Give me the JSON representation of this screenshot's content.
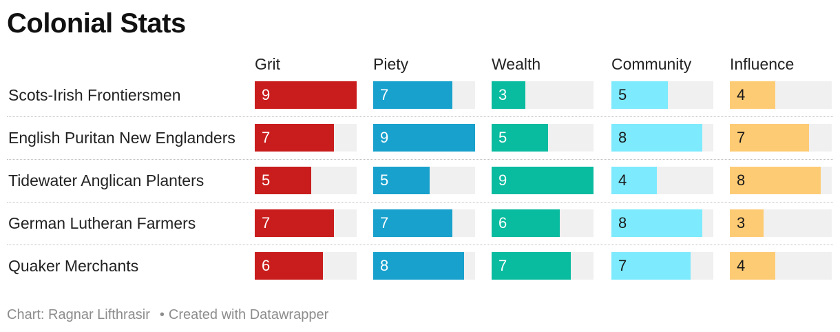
{
  "title": "Colonial Stats",
  "footer": {
    "source": "Chart: Ragnar Lifthrasir",
    "separator": "•",
    "credit": "Created with Datawrapper"
  },
  "colors": {
    "Grit": "#c91d1d",
    "Piety": "#18a1cd",
    "Wealth": "#09bb9f",
    "Community": "#7eeafd",
    "Influence": "#fecb75",
    "track": "#f0f0f0"
  },
  "chart_data": {
    "type": "table",
    "title": "Colonial Stats",
    "max": 9,
    "columns": [
      "Grit",
      "Piety",
      "Wealth",
      "Community",
      "Influence"
    ],
    "rows": [
      {
        "label": "Scots-Irish Frontiersmen",
        "values": [
          9,
          7,
          3,
          5,
          4
        ]
      },
      {
        "label": "English Puritan New Englanders",
        "values": [
          7,
          9,
          5,
          8,
          7
        ]
      },
      {
        "label": "Tidewater Anglican Planters",
        "values": [
          5,
          5,
          9,
          4,
          8
        ]
      },
      {
        "label": "German Lutheran Farmers",
        "values": [
          7,
          7,
          6,
          8,
          3
        ]
      },
      {
        "label": "Quaker Merchants",
        "values": [
          6,
          8,
          7,
          7,
          4
        ]
      }
    ]
  }
}
